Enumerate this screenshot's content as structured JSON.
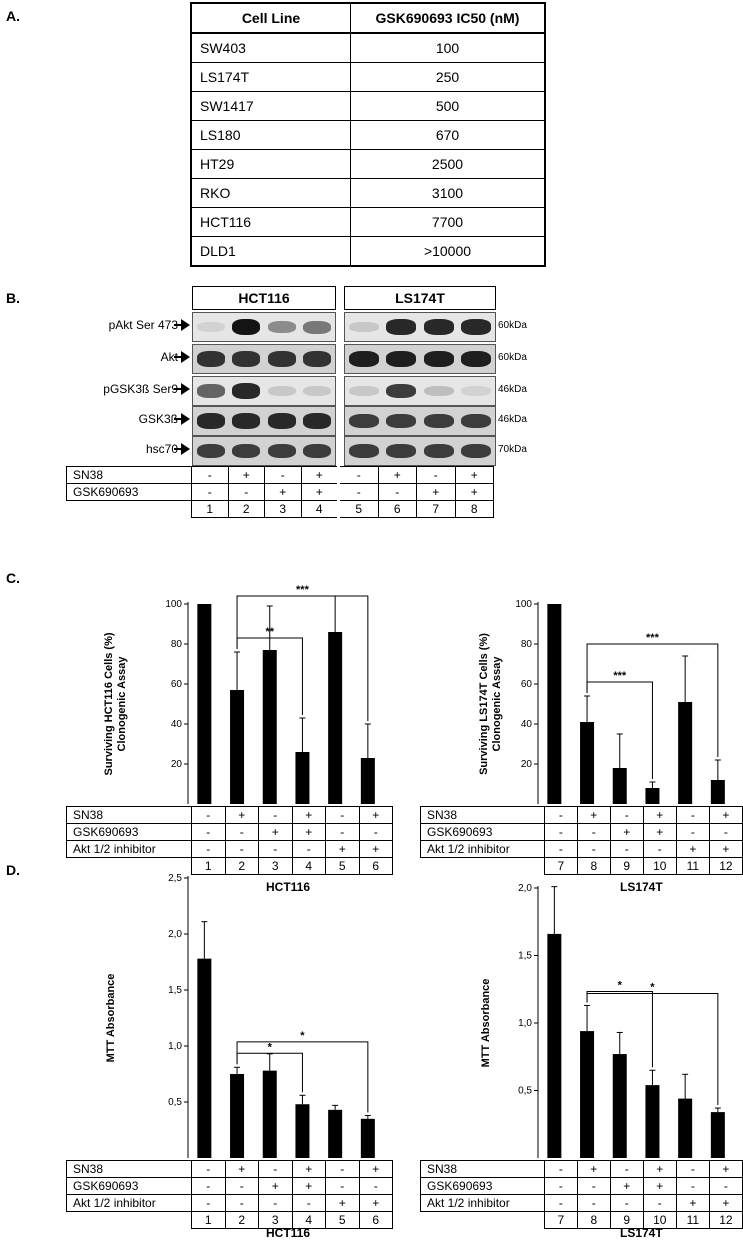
{
  "panel_labels": {
    "a": "A.",
    "b": "B.",
    "c": "C.",
    "d": "D."
  },
  "ic50_table": {
    "headers": [
      "Cell Line",
      "GSK690693 IC50 (nM)"
    ],
    "rows": [
      [
        "SW403",
        "100"
      ],
      [
        "LS174T",
        "250"
      ],
      [
        "SW1417",
        "500"
      ],
      [
        "LS180",
        "670"
      ],
      [
        "HT29",
        "2500"
      ],
      [
        "RKO",
        "3100"
      ],
      [
        "HCT116",
        "7700"
      ],
      [
        "DLD1",
        ">10000"
      ]
    ]
  },
  "western": {
    "cell_lines": [
      "HCT116",
      "LS174T"
    ],
    "proteins": [
      {
        "label": "pAkt Ser 473",
        "kda": "60kDa",
        "hct": [
          0.05,
          1.0,
          0.4,
          0.5
        ],
        "ls": [
          0.1,
          0.9,
          0.9,
          0.9
        ]
      },
      {
        "label": "Akt",
        "kda": "60kDa",
        "hct": [
          0.85,
          0.85,
          0.85,
          0.85
        ],
        "ls": [
          0.95,
          0.95,
          0.95,
          0.95
        ]
      },
      {
        "label": "pGSK3ß Ser9",
        "kda": "46kDa",
        "hct": [
          0.6,
          0.9,
          0.1,
          0.1
        ],
        "ls": [
          0.1,
          0.8,
          0.15,
          0.05
        ]
      },
      {
        "label": "GSK3ß",
        "kda": "46kDa",
        "hct": [
          0.9,
          0.9,
          0.9,
          0.9
        ],
        "ls": [
          0.8,
          0.8,
          0.8,
          0.8
        ]
      },
      {
        "label": "hsc70",
        "kda": "70kDa",
        "hct": [
          0.8,
          0.8,
          0.8,
          0.8
        ],
        "ls": [
          0.8,
          0.8,
          0.8,
          0.8
        ]
      }
    ],
    "treatment_rows": [
      {
        "label": "SN38",
        "values": [
          "-",
          "+",
          "-",
          "+",
          "-",
          "+",
          "-",
          "+"
        ]
      },
      {
        "label": "GSK690693",
        "values": [
          "-",
          "-",
          "+",
          "+",
          "-",
          "-",
          "+",
          "+"
        ]
      }
    ],
    "lanes": [
      "1",
      "2",
      "3",
      "4",
      "5",
      "6",
      "7",
      "8"
    ]
  },
  "panel_c": {
    "treatment_labels": [
      "SN38",
      "GSK690693",
      "Akt 1/2 inhibitor"
    ],
    "treatment_values": [
      [
        "-",
        "+",
        "-",
        "+",
        "-",
        "+"
      ],
      [
        "-",
        "-",
        "+",
        "+",
        "-",
        "-"
      ],
      [
        "-",
        "-",
        "-",
        "-",
        "+",
        "+"
      ]
    ]
  },
  "panel_d": {
    "treatment_labels": [
      "SN38",
      "GSK690693",
      "Akt 1/2 inhibitor"
    ],
    "treatment_values": [
      [
        "-",
        "+",
        "-",
        "+",
        "-",
        "+"
      ],
      [
        "-",
        "-",
        "+",
        "+",
        "-",
        "-"
      ],
      [
        "-",
        "-",
        "-",
        "-",
        "+",
        "+"
      ]
    ]
  },
  "chart_data": [
    {
      "type": "bar",
      "panel": "C",
      "cell_line": "HCT116",
      "ylabel": "Surviving HCT116 Cells (%)\nClonogenic Assay",
      "categories": [
        "1",
        "2",
        "3",
        "4",
        "5",
        "6"
      ],
      "values": [
        100,
        57,
        77,
        26,
        86,
        23
      ],
      "errors": [
        0,
        19,
        22,
        17,
        18,
        17
      ],
      "ylim": [
        0,
        100
      ],
      "yticks": [
        "20",
        "40",
        "60",
        "80",
        "100"
      ],
      "significance": [
        {
          "from": "2",
          "to": "4",
          "label": "**"
        },
        {
          "from": "2",
          "to": "6",
          "label": "***"
        }
      ]
    },
    {
      "type": "bar",
      "panel": "C",
      "cell_line": "LS174T",
      "ylabel": "Surviving LS174T Cells (%)\nClonogenic Assay",
      "categories": [
        "7",
        "8",
        "9",
        "10",
        "11",
        "12"
      ],
      "values": [
        100,
        41,
        18,
        8,
        51,
        12
      ],
      "errors": [
        0,
        13,
        17,
        3,
        23,
        10
      ],
      "ylim": [
        0,
        100
      ],
      "yticks": [
        "20",
        "40",
        "60",
        "80",
        "100"
      ],
      "significance": [
        {
          "from": "8",
          "to": "10",
          "label": "***"
        },
        {
          "from": "8",
          "to": "12",
          "label": "***"
        }
      ]
    },
    {
      "type": "bar",
      "panel": "D",
      "cell_line": "HCT116",
      "ylabel": "MTT Absorbance",
      "categories": [
        "1",
        "2",
        "3",
        "4",
        "5",
        "6"
      ],
      "values": [
        1.78,
        0.75,
        0.78,
        0.48,
        0.43,
        0.35
      ],
      "errors": [
        0.33,
        0.06,
        0.15,
        0.08,
        0.04,
        0.03
      ],
      "ylim": [
        0,
        2.5
      ],
      "yticks": [
        "0,5",
        "1,0",
        "1,5",
        "2,0",
        "2,5"
      ],
      "significance": [
        {
          "from": "2",
          "to": "4",
          "label": "*"
        },
        {
          "from": "2",
          "to": "6",
          "label": "*"
        }
      ]
    },
    {
      "type": "bar",
      "panel": "D",
      "cell_line": "LS174T",
      "ylabel": "MTT Absorbance",
      "categories": [
        "7",
        "8",
        "9",
        "10",
        "11",
        "12"
      ],
      "values": [
        1.66,
        0.94,
        0.77,
        0.54,
        0.44,
        0.34
      ],
      "errors": [
        0.35,
        0.19,
        0.16,
        0.11,
        0.18,
        0.03
      ],
      "ylim": [
        0,
        2.0
      ],
      "yticks": [
        "0,5",
        "1,0",
        "1,5",
        "2,0"
      ],
      "significance": [
        {
          "from": "8",
          "to": "10",
          "label": "*"
        },
        {
          "from": "8",
          "to": "12",
          "label": "*"
        }
      ]
    }
  ]
}
